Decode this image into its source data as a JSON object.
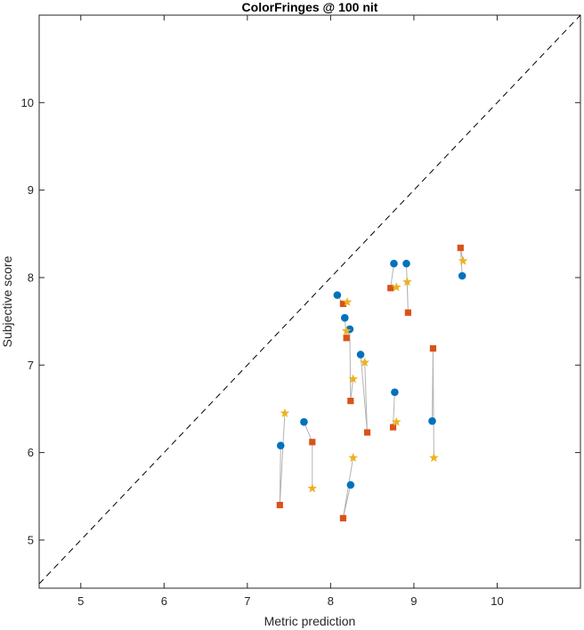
{
  "chart_data": {
    "type": "scatter",
    "title": "ColorFringes @ 100 nit",
    "xlabel": "Metric prediction",
    "ylabel": "Subjective score",
    "xlim": [
      4.5,
      11.0
    ],
    "ylim": [
      4.45,
      11.0
    ],
    "xticks": [
      5,
      6,
      7,
      8,
      9,
      10
    ],
    "yticks": [
      5,
      6,
      7,
      8,
      9,
      10
    ],
    "grid": false,
    "diagonal": "y = x, dashed black",
    "connector_color": "#b3b3b3",
    "series": [
      {
        "marker": "circle",
        "color": "#0072BD",
        "points": [
          {
            "x": 7.4,
            "y": 6.08
          },
          {
            "x": 7.68,
            "y": 6.35
          },
          {
            "x": 8.24,
            "y": 5.63
          },
          {
            "x": 8.08,
            "y": 7.8
          },
          {
            "x": 8.17,
            "y": 7.54
          },
          {
            "x": 8.23,
            "y": 7.41
          },
          {
            "x": 8.36,
            "y": 7.12
          },
          {
            "x": 8.76,
            "y": 8.16
          },
          {
            "x": 8.91,
            "y": 8.16
          },
          {
            "x": 8.77,
            "y": 6.69
          },
          {
            "x": 9.22,
            "y": 6.36
          },
          {
            "x": 9.58,
            "y": 8.02
          }
        ]
      },
      {
        "marker": "square",
        "color": "#D95319",
        "points": [
          {
            "x": 7.39,
            "y": 5.4
          },
          {
            "x": 7.78,
            "y": 6.12
          },
          {
            "x": 8.15,
            "y": 5.25
          },
          {
            "x": 8.15,
            "y": 7.7
          },
          {
            "x": 8.19,
            "y": 7.31
          },
          {
            "x": 8.24,
            "y": 6.59
          },
          {
            "x": 8.44,
            "y": 6.23
          },
          {
            "x": 8.72,
            "y": 7.88
          },
          {
            "x": 8.93,
            "y": 7.6
          },
          {
            "x": 8.75,
            "y": 6.29
          },
          {
            "x": 9.23,
            "y": 7.19
          },
          {
            "x": 9.56,
            "y": 8.34
          }
        ]
      },
      {
        "marker": "star",
        "color": "#EDB120",
        "points": [
          {
            "x": 7.45,
            "y": 6.45
          },
          {
            "x": 7.78,
            "y": 5.59
          },
          {
            "x": 8.27,
            "y": 5.94
          },
          {
            "x": 8.2,
            "y": 7.72
          },
          {
            "x": 8.19,
            "y": 7.39
          },
          {
            "x": 8.27,
            "y": 6.84
          },
          {
            "x": 8.41,
            "y": 7.03
          },
          {
            "x": 8.79,
            "y": 7.89
          },
          {
            "x": 8.92,
            "y": 7.95
          },
          {
            "x": 8.79,
            "y": 6.35
          },
          {
            "x": 9.24,
            "y": 5.94
          },
          {
            "x": 9.59,
            "y": 8.19
          }
        ]
      }
    ]
  }
}
